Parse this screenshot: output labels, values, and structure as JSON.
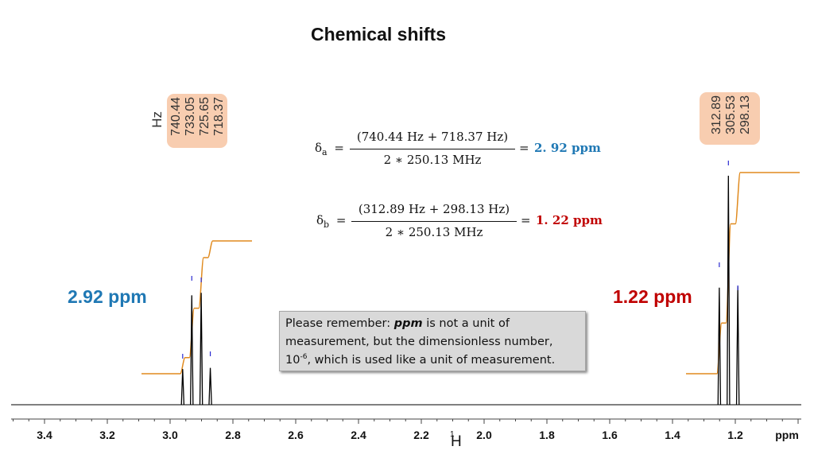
{
  "title": "Chemical shifts",
  "hz_axis_label": "Hz",
  "peak_labels_left": [
    "740.44",
    "733.05",
    "725.65",
    "718.37"
  ],
  "peak_labels_right": [
    "312.89",
    "305.53",
    "298.13"
  ],
  "equation_a": {
    "lhs": "δ",
    "sub": "a",
    "numerator": "(740.44 Hz + 718.37 Hz)",
    "denominator": "2 ∗ 250.13 MHz",
    "equals": "=",
    "result": "2. 92 ppm",
    "result_color": "#1f78b4"
  },
  "equation_b": {
    "lhs": "δ",
    "sub": "b",
    "numerator": "(312.89 Hz + 298.13 Hz)",
    "denominator": "2 ∗ 250.13 MHz",
    "equals": "=",
    "result": "1. 22 ppm",
    "result_color": "#c00000"
  },
  "label_a": {
    "text": "2.92 ppm",
    "color": "#1f78b4"
  },
  "label_b": {
    "text": "1.22 ppm",
    "color": "#c00000"
  },
  "note": {
    "prefix": "Please remember: ",
    "emphasis": "ppm",
    "line1_rest": " is not a unit of",
    "line2": "measurement, but the dimensionless number,",
    "line3_base": "10",
    "line3_sup": "-6",
    "line3_rest": ", which is used like a unit of measurement."
  },
  "chart_data": {
    "type": "line",
    "title": "Chemical shifts",
    "xlabel": "ppm",
    "nucleus_label": "H",
    "nucleus_mass": "1",
    "x_reversed": true,
    "xlim": [
      3.5,
      1.0
    ],
    "ticks": [
      "3.4",
      "3.2",
      "3.0",
      "2.8",
      "2.6",
      "2.4",
      "2.2",
      "2.0",
      "1.8",
      "1.6",
      "1.4",
      "1.2"
    ],
    "tick_values": [
      3.4,
      3.2,
      3.0,
      2.8,
      2.6,
      2.4,
      2.2,
      2.0,
      1.8,
      1.6,
      1.4,
      1.2
    ],
    "spectrometer_frequency_MHz": 250.13,
    "multiplets": [
      {
        "name": "a",
        "type": "quartet",
        "center_ppm": 2.92,
        "peaks_ppm": [
          2.96,
          2.931,
          2.901,
          2.872
        ],
        "peaks_Hz": [
          740.44,
          733.05,
          725.65,
          718.37
        ],
        "relative_heights": [
          0.28,
          0.86,
          0.88,
          0.29
        ]
      },
      {
        "name": "b",
        "type": "triplet",
        "center_ppm": 1.22,
        "peaks_ppm": [
          1.251,
          1.222,
          1.192
        ],
        "peaks_Hz": [
          312.89,
          305.53,
          298.13
        ],
        "relative_heights": [
          0.92,
          1.8,
          0.93
        ]
      }
    ],
    "integral_colors": "#e08a1e",
    "line_color": "#000000",
    "tick_marks_color": "#2b2bd0"
  }
}
